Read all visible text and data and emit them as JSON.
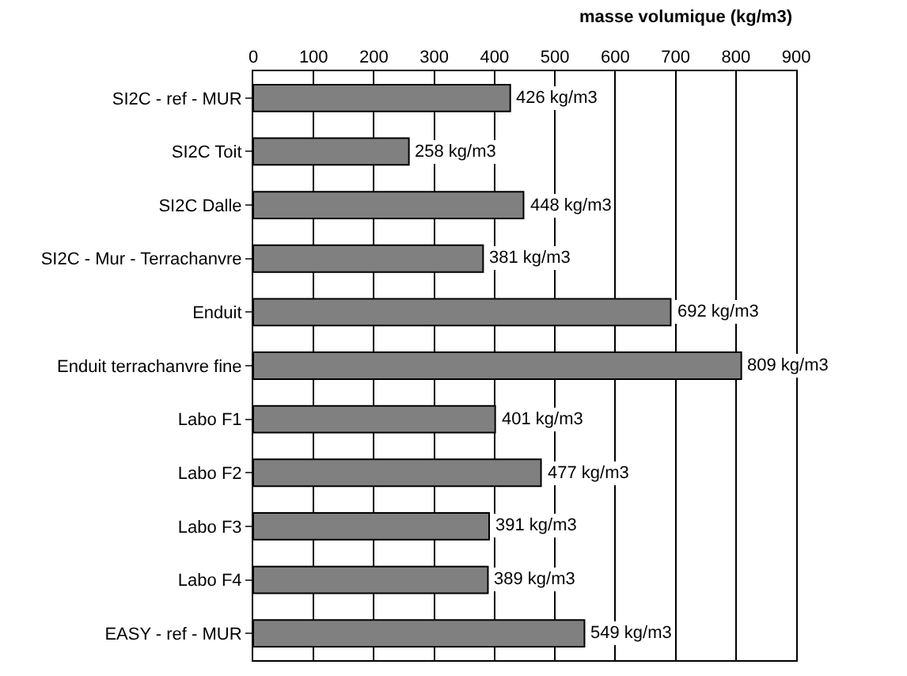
{
  "chart_data": {
    "type": "bar",
    "orientation": "horizontal",
    "xlabel": "masse volumique (kg/m3)",
    "categories": [
      "SI2C - ref - MUR",
      "SI2C Toit",
      "SI2C Dalle",
      "SI2C - Mur - Terrachanvre",
      "Enduit",
      "Enduit terrachanvre fine",
      "Labo F1",
      "Labo F2",
      "Labo F3",
      "Labo F4",
      "EASY - ref - MUR"
    ],
    "values": [
      426,
      258,
      448,
      381,
      692,
      809,
      401,
      477,
      391,
      389,
      549
    ],
    "value_labels": [
      "426 kg/m3",
      "258 kg/m3",
      "448 kg/m3",
      "381 kg/m3",
      "692 kg/m3",
      "809 kg/m3",
      "401 kg/m3",
      "477 kg/m3",
      "391 kg/m3",
      "389 kg/m3",
      "549 kg/m3"
    ],
    "color": "#808080",
    "xlim": [
      0,
      900
    ],
    "xticks": [
      0,
      100,
      200,
      300,
      400,
      500,
      600,
      700,
      800,
      900
    ],
    "grid": "x",
    "legend": false
  }
}
